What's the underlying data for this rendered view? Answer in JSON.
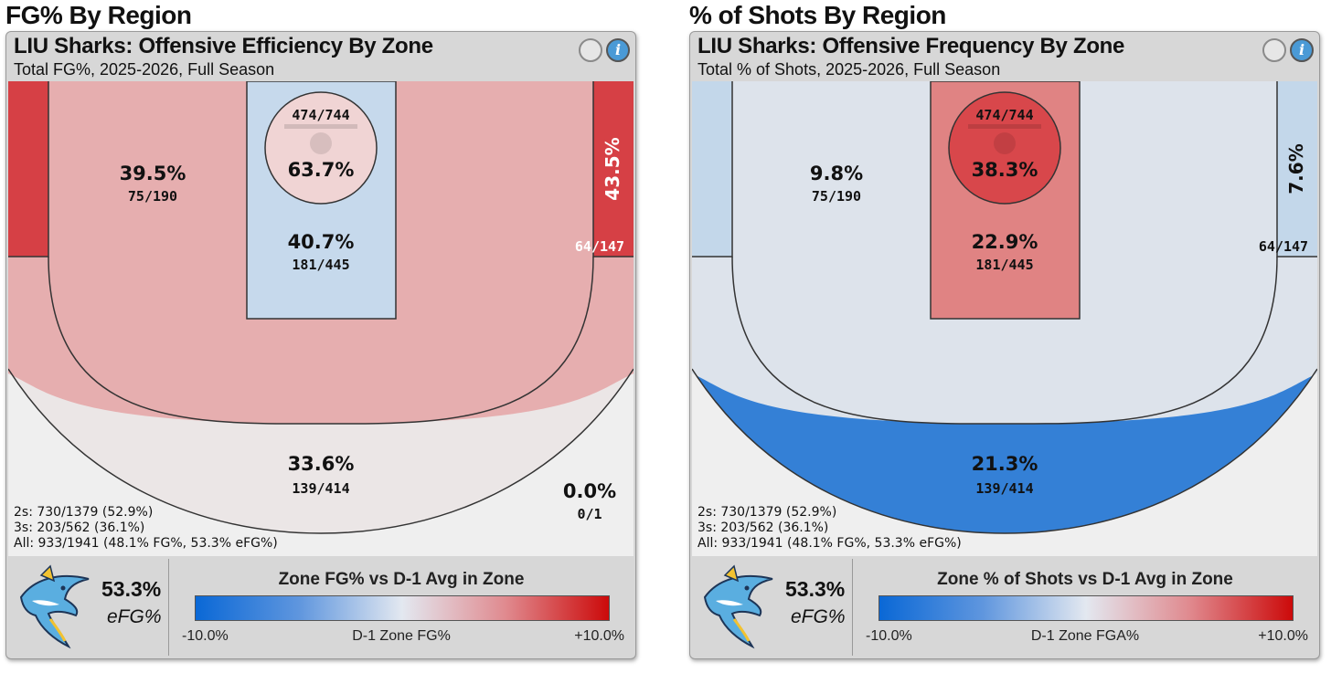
{
  "chart_data": [
    {
      "type": "heatmap",
      "section_title": "FG% By Region",
      "title": "LIU Sharks: Offensive Efficiency By Zone",
      "subtitle": "Total FG%, 2025-2026, Full Season",
      "zones": {
        "rim": {
          "pct": "63.7%",
          "made_att": "474/744",
          "color": "#f0d4d4"
        },
        "paint": {
          "pct": "40.7%",
          "made_att": "181/445",
          "color": "#c6d9ec"
        },
        "midrange": {
          "pct": "39.5%",
          "made_att": "75/190",
          "color": "#e6aeaf"
        },
        "corner3_left": {
          "color": "#d64045"
        },
        "corner3_right": {
          "pct": "43.5%",
          "made_att": "64/147",
          "color": "#d64045"
        },
        "arc3": {
          "pct": "33.6%",
          "made_att": "139/414",
          "color": "#ebe6e6"
        },
        "heave": {
          "pct": "0.0%",
          "made_att": "0/1",
          "color": "#efefef"
        }
      },
      "summary": [
        "2s: 730/1379 (52.9%)",
        "3s: 203/562 (36.1%)",
        "All: 933/1941 (48.1% FG%, 53.3% eFG%)"
      ],
      "efg_value": "53.3%",
      "efg_label": "eFG%",
      "legend": {
        "title": "Zone FG% vs D-1 Avg in Zone",
        "min_label": "-10.0%",
        "mid_label": "D-1 Zone FG%",
        "max_label": "+10.0%",
        "range": [
          -10.0,
          10.0
        ]
      }
    },
    {
      "type": "heatmap",
      "section_title": "% of Shots By Region",
      "title": "LIU Sharks: Offensive Frequency By Zone",
      "subtitle": "Total % of Shots, 2025-2026, Full Season",
      "zones": {
        "rim": {
          "pct": "38.3%",
          "made_att": "474/744",
          "color": "#d8474b"
        },
        "paint": {
          "pct": "22.9%",
          "made_att": "181/445",
          "color": "#e08383"
        },
        "midrange": {
          "pct": "9.8%",
          "made_att": "75/190",
          "color": "#dde3eb"
        },
        "corner3_left": {
          "color": "#c3d7ea"
        },
        "corner3_right": {
          "pct": "7.6%",
          "made_att": "64/147",
          "color": "#c3d7ea"
        },
        "arc3": {
          "pct": "21.3%",
          "made_att": "139/414",
          "color": "#3480d6"
        },
        "heave": {
          "color": "#efefef"
        }
      },
      "summary": [
        "2s: 730/1379 (52.9%)",
        "3s: 203/562 (36.1%)",
        "All: 933/1941 (48.1% FG%, 53.3% eFG%)"
      ],
      "efg_value": "53.3%",
      "efg_label": "eFG%",
      "legend": {
        "title": "Zone % of Shots vs D-1 Avg in Zone",
        "min_label": "-10.0%",
        "mid_label": "D-1 Zone FGA%",
        "max_label": "+10.0%",
        "range": [
          -10.0,
          10.0
        ]
      }
    }
  ],
  "header_buttons": {
    "info_glyph": "i"
  },
  "icons": {
    "info": "info-icon",
    "toggle": "circle-toggle-icon",
    "logo": "shark-logo-icon"
  }
}
